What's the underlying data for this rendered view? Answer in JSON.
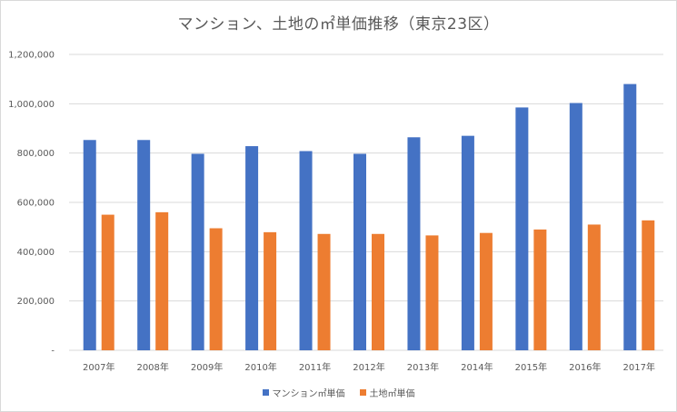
{
  "chart_data": {
    "type": "bar",
    "title": "マンション、土地の㎡単価推移（東京23区）",
    "categories": [
      "2007年",
      "2008年",
      "2009年",
      "2010年",
      "2011年",
      "2012年",
      "2013年",
      "2014年",
      "2015年",
      "2016年",
      "2017年"
    ],
    "series": [
      {
        "name": "マンション㎡単価",
        "color": "#4472c4",
        "values": [
          853000,
          853000,
          797000,
          828000,
          808000,
          797000,
          864000,
          870000,
          985000,
          1003000,
          1080000
        ]
      },
      {
        "name": "土地㎡単価",
        "color": "#ed7d31",
        "values": [
          550000,
          560000,
          495000,
          479000,
          472000,
          472000,
          466000,
          476000,
          490000,
          510000,
          527000
        ]
      }
    ],
    "y_ticks": [
      "-",
      "200,000",
      "400,000",
      "600,000",
      "800,000",
      "1,000,000",
      "1,200,000"
    ],
    "ylim": [
      0,
      1200000
    ],
    "grid": true,
    "legend_position": "bottom"
  }
}
